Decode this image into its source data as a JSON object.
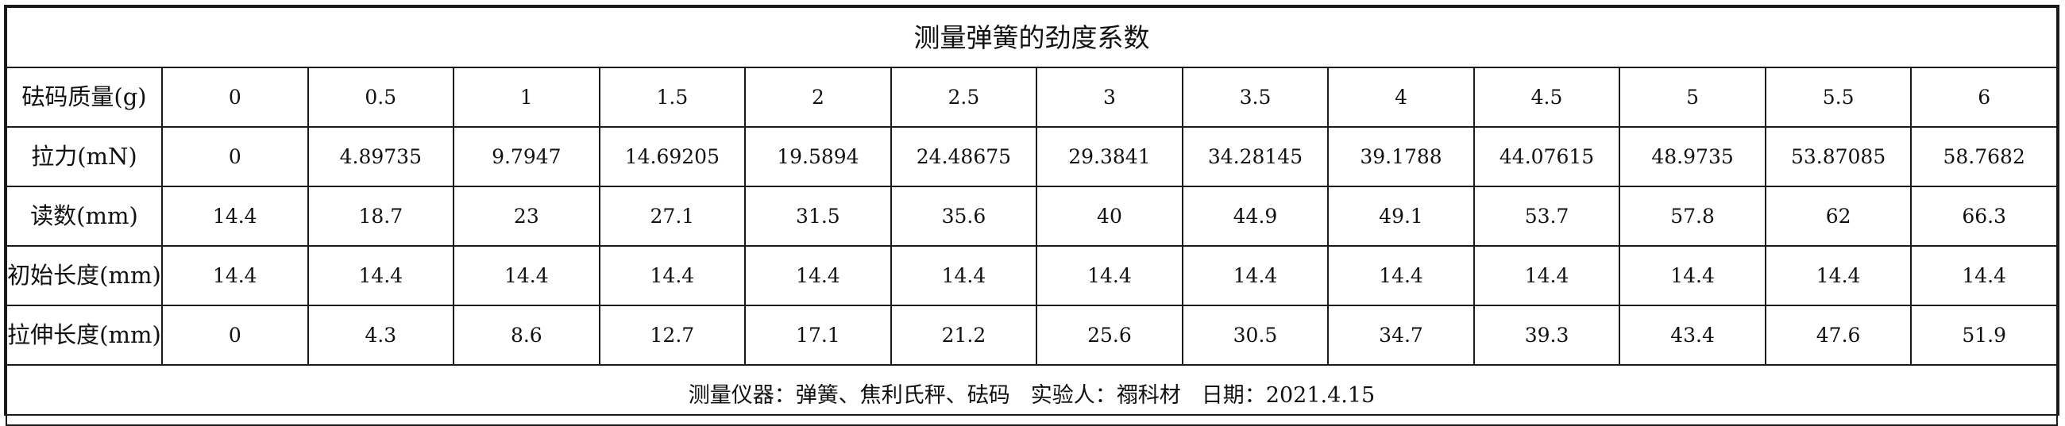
{
  "title": "测量弹簧的劲度系数",
  "rows": [
    {
      "label": "砝码质量(g)",
      "values": [
        "0",
        "0.5",
        "1",
        "1.5",
        "2",
        "2.5",
        "3",
        "3.5",
        "4",
        "4.5",
        "5",
        "5.5",
        "6"
      ]
    },
    {
      "label": "拉力(mN)",
      "values": [
        "0",
        "4.89735",
        "9.7947",
        "14.69205",
        "19.5894",
        "24.48675",
        "29.3841",
        "34.28145",
        "39.1788",
        "44.07615",
        "48.9735",
        "53.87085",
        "58.7682"
      ]
    },
    {
      "label": "读数(mm)",
      "values": [
        "14.4",
        "18.7",
        "23",
        "27.1",
        "31.5",
        "35.6",
        "40",
        "44.9",
        "49.1",
        "53.7",
        "57.8",
        "62",
        "66.3"
      ]
    },
    {
      "label": "初始长度(mm)",
      "values": [
        "14.4",
        "14.4",
        "14.4",
        "14.4",
        "14.4",
        "14.4",
        "14.4",
        "14.4",
        "14.4",
        "14.4",
        "14.4",
        "14.4",
        "14.4"
      ]
    },
    {
      "label": "拉伸长度(mm)",
      "values": [
        "0",
        "4.3",
        "8.6",
        "12.7",
        "17.1",
        "21.2",
        "25.6",
        "30.5",
        "34.7",
        "39.3",
        "43.4",
        "47.6",
        "51.9"
      ]
    }
  ],
  "footer": {
    "instruments": "测量仪器：弹簧、焦利氏秤、砝码",
    "experimenter": "实验人：禤科材",
    "date": "日期：2021.4.15"
  }
}
